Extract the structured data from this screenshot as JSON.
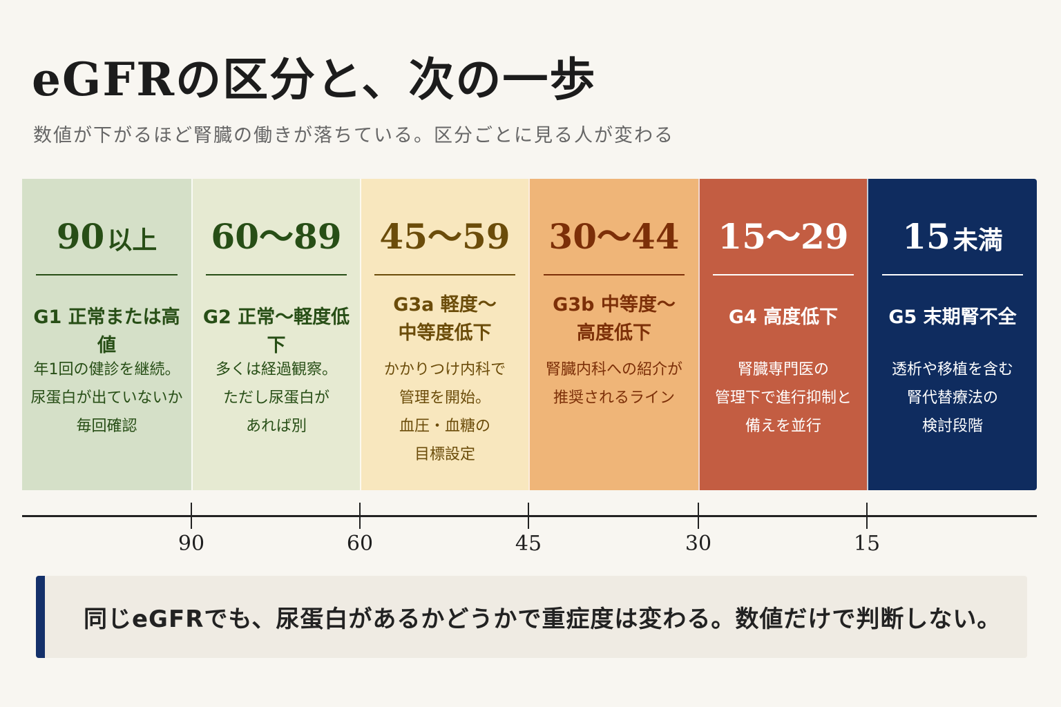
{
  "title": "eGFRの区分と、次の一歩",
  "subtitle": "数値が下がるほど腎臓の働きが落ちている。区分ごとに見る人が変わる",
  "stages": [
    {
      "range": "90",
      "range_suffix": "以上",
      "grade": "G1 正常または高値",
      "desc": "年1回の健診を継続。\n尿蛋白が出ていないか\n毎回確認",
      "bg": "#d5e0c8",
      "fg": "#274e16"
    },
    {
      "range": "60～89",
      "range_suffix": "",
      "grade": "G2 正常～軽度低下",
      "desc": "多くは経過観察。\nただし尿蛋白が\nあれば別",
      "bg": "#e6ead2",
      "fg": "#274e16"
    },
    {
      "range": "45～59",
      "range_suffix": "",
      "grade": "G3a 軽度～\n中等度低下",
      "desc": "かかりつけ内科で\n管理を開始。\n血圧・血糖の\n目標設定",
      "bg": "#f8e7be",
      "fg": "#6b4c0a"
    },
    {
      "range": "30～44",
      "range_suffix": "",
      "grade": "G3b 中等度～\n高度低下",
      "desc": "腎臓内科への紹介が\n推奨されるライン",
      "bg": "#efb578",
      "fg": "#7c2f08"
    },
    {
      "range": "15～29",
      "range_suffix": "",
      "grade": "G4 高度低下",
      "desc": "腎臓専門医の\n管理下で進行抑制と\n備えを並行",
      "bg": "#c35d42",
      "fg": "#ffffff"
    },
    {
      "range": "15",
      "range_suffix": "未満",
      "grade": "G5 末期腎不全",
      "desc": "透析や移植を含む\n腎代替療法の\n検討段階",
      "bg": "#0f2c5f",
      "fg": "#ffffff"
    }
  ],
  "axis": {
    "ticks": [
      "90",
      "60",
      "45",
      "30",
      "15"
    ]
  },
  "note": "同じeGFRでも、尿蛋白があるかどうかで重症度は変わる。数値だけで判断しない。"
}
